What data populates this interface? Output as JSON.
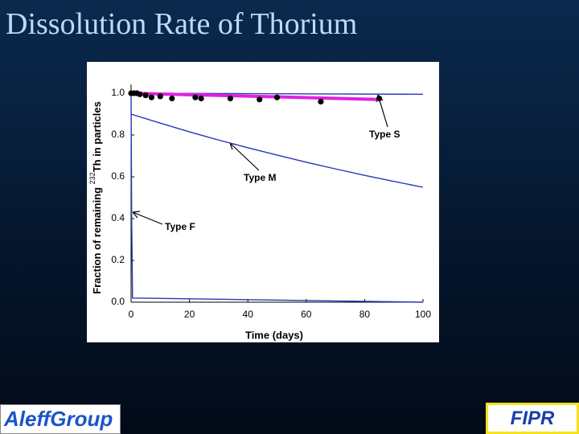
{
  "title": "Dissolution Rate of Thorium",
  "chart_data": {
    "type": "line",
    "xlabel": "Time (days)",
    "ylabel": [
      "Fraction of remaining ",
      "232",
      "Th in particles"
    ],
    "xlim": [
      0,
      100
    ],
    "ylim": [
      0,
      1.0
    ],
    "xticks": [
      0,
      20,
      40,
      60,
      80,
      100
    ],
    "yticks": [
      {
        "value": 0,
        "label": "0.0"
      },
      0.2,
      0.4,
      0.6,
      {
        "value": 0.8,
        "label": "0.8"
      },
      {
        "value": 1.0,
        "label": "1.0"
      }
    ],
    "series": [
      {
        "name": "Type S",
        "color": "#2a35b8",
        "x": [
          0,
          100
        ],
        "values": [
          1.0,
          0.995
        ]
      },
      {
        "name": "Type M",
        "color": "#2a35b8",
        "x": [
          0,
          10,
          20,
          30,
          40,
          50,
          60,
          70,
          80,
          90,
          100
        ],
        "values": [
          0.9,
          0.857,
          0.815,
          0.776,
          0.739,
          0.704,
          0.67,
          0.638,
          0.607,
          0.578,
          0.55
        ]
      },
      {
        "name": "Type F",
        "color": "#2a35b8",
        "x": [
          0,
          0.2,
          0.5,
          100
        ],
        "values": [
          1.0,
          0.4,
          0.02,
          0.0
        ]
      },
      {
        "color": "#e020e0",
        "x": [
          0,
          85
        ],
        "values": [
          1.0,
          0.97
        ],
        "style": "fit"
      },
      {
        "color": "#000000",
        "x": [
          0,
          1,
          2,
          3,
          5,
          7,
          10,
          14,
          22,
          24,
          34,
          44,
          50,
          65,
          85
        ],
        "values": [
          1.0,
          1.0,
          1.0,
          0.995,
          0.99,
          0.98,
          0.985,
          0.975,
          0.98,
          0.975,
          0.975,
          0.97,
          0.98,
          0.96,
          0.975
        ],
        "style": "points"
      }
    ]
  },
  "footer": {
    "left_logo": "AleffGroup",
    "right_logo": "FIPR"
  }
}
